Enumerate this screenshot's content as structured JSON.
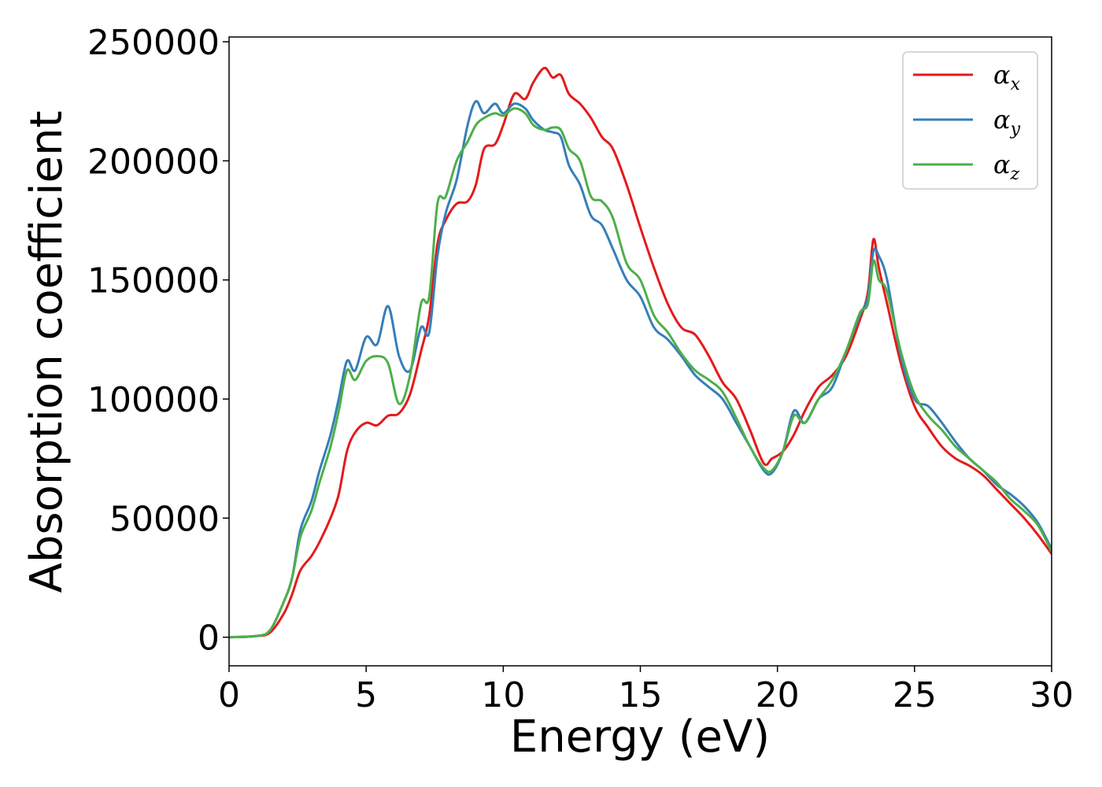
{
  "chart_data": {
    "type": "line",
    "title": "",
    "xlabel": "Energy (eV)",
    "ylabel": "Absorption coefficient",
    "xlim": [
      0,
      30
    ],
    "ylim": [
      -12000,
      252000
    ],
    "xticks": [
      0,
      5,
      10,
      15,
      20,
      25,
      30
    ],
    "yticks": [
      0,
      50000,
      100000,
      150000,
      200000,
      250000
    ],
    "grid": false,
    "legend_position": "top-right",
    "series": [
      {
        "name": "α_x",
        "legend_base": "α",
        "legend_sub": "x",
        "color": "#e41a1c",
        "x": [
          0,
          1,
          1.5,
          2,
          2.3,
          2.6,
          3,
          3.3,
          3.7,
          4,
          4.3,
          4.6,
          5,
          5.4,
          5.8,
          6.2,
          6.6,
          7,
          7.3,
          7.6,
          7.9,
          8.3,
          8.7,
          9,
          9.3,
          9.7,
          10,
          10.4,
          10.8,
          11.1,
          11.5,
          11.8,
          12.1,
          12.4,
          12.8,
          13.2,
          13.6,
          14,
          14.5,
          15,
          15.5,
          16,
          16.5,
          17,
          17.5,
          18,
          18.5,
          19,
          19.5,
          19.8,
          20.2,
          20.6,
          21,
          21.5,
          22,
          22.5,
          23,
          23.3,
          23.5,
          23.7,
          24,
          24.5,
          25,
          25.5,
          26,
          26.5,
          27,
          27.5,
          28,
          28.5,
          29,
          29.5,
          30
        ],
        "y": [
          0,
          500,
          2000,
          10000,
          18000,
          28000,
          34000,
          40000,
          50000,
          60000,
          78000,
          86000,
          90000,
          89000,
          93000,
          94000,
          102000,
          120000,
          135000,
          165000,
          175000,
          182000,
          183000,
          190000,
          205000,
          207000,
          215000,
          228000,
          226000,
          233000,
          239000,
          235000,
          236000,
          228000,
          224000,
          218000,
          210000,
          205000,
          190000,
          172000,
          155000,
          140000,
          130000,
          127000,
          118000,
          107000,
          100000,
          87000,
          73000,
          75000,
          78000,
          85000,
          95000,
          105000,
          110000,
          118000,
          133000,
          145000,
          167000,
          155000,
          140000,
          115000,
          97000,
          88000,
          80000,
          75000,
          72000,
          68000,
          62000,
          56000,
          50000,
          43000,
          35000
        ]
      },
      {
        "name": "α_y",
        "legend_base": "α",
        "legend_sub": "y",
        "color": "#377eb8",
        "x": [
          0,
          1,
          1.5,
          2,
          2.3,
          2.6,
          3,
          3.3,
          3.7,
          4,
          4.3,
          4.6,
          5,
          5.4,
          5.8,
          6.2,
          6.6,
          7,
          7.3,
          7.6,
          7.9,
          8.3,
          8.7,
          9,
          9.3,
          9.7,
          10,
          10.4,
          10.8,
          11.1,
          11.5,
          11.8,
          12.1,
          12.4,
          12.8,
          13.2,
          13.6,
          14,
          14.5,
          15,
          15.5,
          16,
          16.5,
          17,
          17.5,
          18,
          18.5,
          19,
          19.5,
          19.8,
          20.2,
          20.6,
          21,
          21.5,
          22,
          22.5,
          23,
          23.3,
          23.5,
          23.7,
          24,
          24.5,
          25,
          25.5,
          26,
          26.5,
          27,
          27.5,
          28,
          28.5,
          29,
          29.5,
          30
        ],
        "y": [
          0,
          500,
          3000,
          15000,
          25000,
          45000,
          57000,
          70000,
          85000,
          100000,
          116000,
          112000,
          126000,
          123000,
          139000,
          118000,
          112000,
          130000,
          128000,
          160000,
          178000,
          192000,
          215000,
          225000,
          220000,
          224000,
          220000,
          224000,
          222000,
          217000,
          213000,
          212000,
          210000,
          198000,
          190000,
          177000,
          173000,
          163000,
          150000,
          143000,
          130000,
          125000,
          118000,
          110000,
          105000,
          100000,
          90000,
          80000,
          70000,
          69000,
          78000,
          95000,
          90000,
          100000,
          105000,
          120000,
          135000,
          143000,
          162000,
          160000,
          150000,
          118000,
          100000,
          97000,
          90000,
          82000,
          75000,
          70000,
          64000,
          60000,
          55000,
          48000,
          37000
        ]
      },
      {
        "name": "α_z",
        "legend_base": "α",
        "legend_sub": "z",
        "color": "#4daf4a",
        "x": [
          0,
          1,
          1.5,
          2,
          2.3,
          2.6,
          3,
          3.3,
          3.7,
          4,
          4.3,
          4.6,
          5,
          5.4,
          5.8,
          6.2,
          6.6,
          7,
          7.3,
          7.6,
          7.9,
          8.3,
          8.7,
          9,
          9.3,
          9.7,
          10,
          10.4,
          10.8,
          11.1,
          11.5,
          11.8,
          12.1,
          12.4,
          12.8,
          13.2,
          13.6,
          14,
          14.5,
          15,
          15.5,
          16,
          16.5,
          17,
          17.5,
          18,
          18.5,
          19,
          19.5,
          19.8,
          20.2,
          20.6,
          21,
          21.5,
          22,
          22.5,
          23,
          23.3,
          23.5,
          23.7,
          24,
          24.5,
          25,
          25.5,
          26,
          26.5,
          27,
          27.5,
          28,
          28.5,
          29,
          29.5,
          30
        ],
        "y": [
          0,
          500,
          3000,
          15000,
          25000,
          42000,
          53000,
          65000,
          80000,
          95000,
          112000,
          108000,
          116000,
          118000,
          115000,
          98000,
          110000,
          140000,
          143000,
          182000,
          185000,
          200000,
          208000,
          215000,
          218000,
          220000,
          219000,
          222000,
          220000,
          215000,
          213000,
          214000,
          213000,
          205000,
          200000,
          185000,
          183000,
          176000,
          157000,
          150000,
          135000,
          128000,
          119000,
          112000,
          108000,
          103000,
          92000,
          80000,
          71000,
          70000,
          78000,
          93000,
          90000,
          100000,
          108000,
          120000,
          136000,
          140000,
          158000,
          150000,
          145000,
          120000,
          102000,
          93000,
          87000,
          80000,
          75000,
          70000,
          65000,
          58000,
          53000,
          47000,
          36000
        ]
      }
    ]
  }
}
